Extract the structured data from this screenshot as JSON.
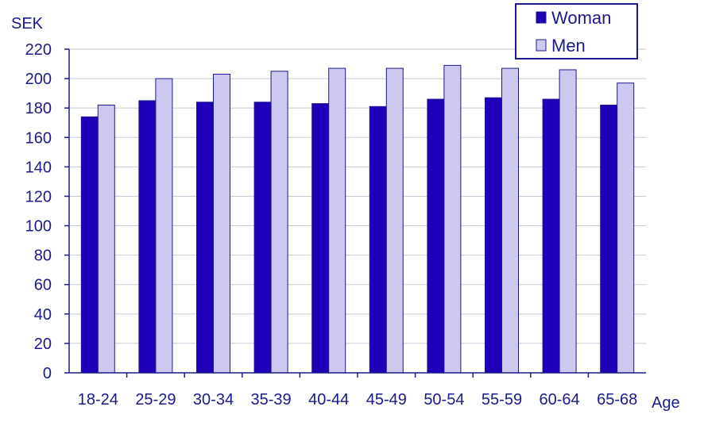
{
  "chart_data": {
    "type": "bar",
    "title": "",
    "ylabel": "SEK",
    "xlabel": "Age",
    "categories": [
      "18-24",
      "25-29",
      "30-34",
      "35-39",
      "40-44",
      "45-49",
      "50-54",
      "55-59",
      "60-64",
      "65-68"
    ],
    "series": [
      {
        "name": "Woman",
        "color": "#1f00b8",
        "values": [
          174,
          185,
          184,
          184,
          183,
          181,
          186,
          187,
          186,
          182
        ]
      },
      {
        "name": "Men",
        "color": "#cdc8f0",
        "values": [
          182,
          200,
          203,
          205,
          207,
          207,
          209,
          207,
          206,
          197
        ]
      }
    ],
    "ylim": [
      0,
      220
    ],
    "yticks": [
      0,
      20,
      40,
      60,
      80,
      100,
      120,
      140,
      160,
      180,
      200,
      220
    ],
    "grid": true,
    "legend_position": "top-right"
  },
  "colors": {
    "axis": "#1a1a8c",
    "grid": "#c8c8d8",
    "bar_outline": "#1a1a8c"
  }
}
